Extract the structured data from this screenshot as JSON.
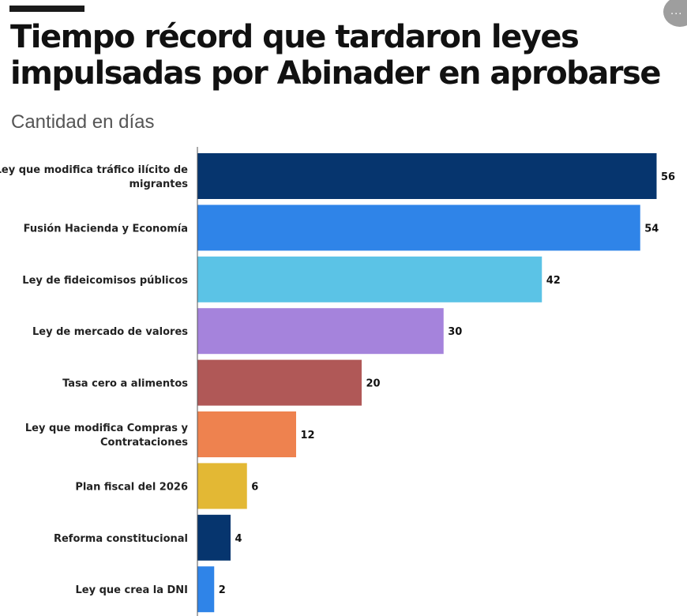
{
  "header": {
    "title": "Tiempo récord que tardaron leyes impulsadas por Abinader en aprobarse",
    "subtitle": "Cantidad en días",
    "menu_icon": "ellipsis-icon",
    "menu_label": "..."
  },
  "chart_data": {
    "type": "bar",
    "orientation": "horizontal",
    "title": "Tiempo récord que tardaron leyes impulsadas por Abinader en aprobarse",
    "subtitle": "Cantidad en días",
    "categories": [
      [
        "Ley que modifica tráfico ilícito de",
        "migrantes"
      ],
      [
        "Fusión Hacienda y Economía"
      ],
      [
        "Ley de fideicomisos públicos"
      ],
      [
        "Ley de mercado de valores"
      ],
      [
        "Tasa cero a alimentos"
      ],
      [
        "Ley que modifica Compras y",
        "Contrataciones"
      ],
      [
        "Plan fiscal del 2026"
      ],
      [
        "Reforma constitucional"
      ],
      [
        "Ley que crea la DNI"
      ]
    ],
    "values": [
      56,
      54,
      42,
      30,
      20,
      12,
      6,
      4,
      2
    ],
    "colors": [
      "#06356e",
      "#2f84e8",
      "#5bc3e6",
      "#a583dc",
      "#b05857",
      "#ee824f",
      "#e3b834",
      "#06356e",
      "#2f84e8"
    ],
    "xlim": [
      0,
      56
    ],
    "grid": false,
    "legend": "none"
  }
}
